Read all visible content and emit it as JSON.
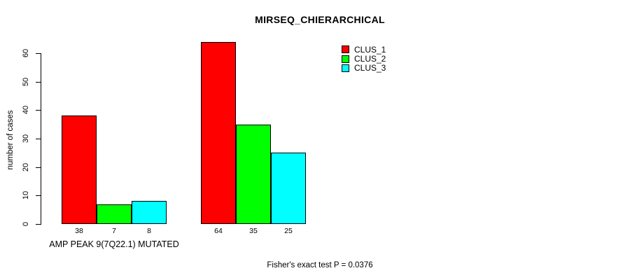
{
  "chart_data": {
    "type": "bar",
    "title": "MIRSEQ_CHIERARCHICAL",
    "ylabel": "number of cases",
    "xlabel": "",
    "ylim": [
      0,
      60
    ],
    "yticks": [
      0,
      10,
      20,
      30,
      40,
      50,
      60
    ],
    "grid": false,
    "legend_position": "top-right",
    "bar_value_labels": true,
    "categories": [
      "AMP PEAK 9(7Q22.1) MUTATED",
      ""
    ],
    "series": [
      {
        "name": "CLUS_1",
        "color": "#ff0000",
        "values": [
          38,
          64
        ]
      },
      {
        "name": "CLUS_2",
        "color": "#00ff00",
        "values": [
          7,
          35
        ]
      },
      {
        "name": "CLUS_3",
        "color": "#00ffff",
        "values": [
          8,
          25
        ]
      }
    ],
    "annotation": "Fisher's exact test P = 0.0376"
  },
  "colors": {
    "axis": "#000000",
    "background": "#ffffff",
    "text": "#000000"
  }
}
